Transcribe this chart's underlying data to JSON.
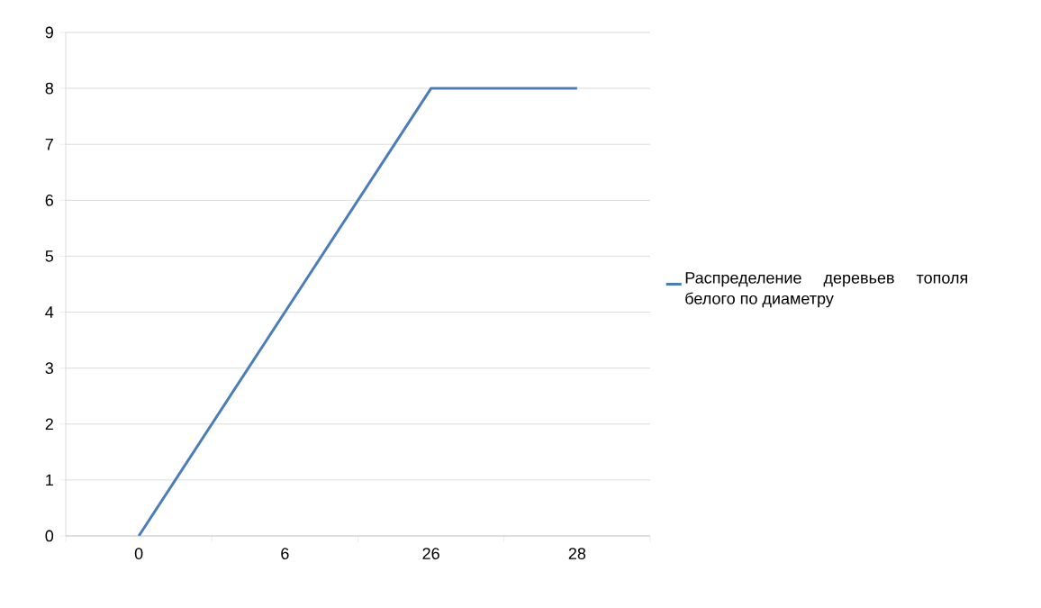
{
  "chart_data": {
    "type": "line",
    "categories": [
      "0",
      "6",
      "26",
      "28"
    ],
    "series": [
      {
        "name": "Распределение деревьев тополя белого по диаметру",
        "color": "#4a7ebb",
        "values": [
          0,
          4,
          8,
          8
        ]
      }
    ],
    "ylim": [
      0,
      9
    ],
    "yticks": [
      0,
      1,
      2,
      3,
      4,
      5,
      6,
      7,
      8,
      9
    ],
    "grid": "y",
    "legend": "right",
    "marker": "none",
    "line_style": "solid"
  }
}
